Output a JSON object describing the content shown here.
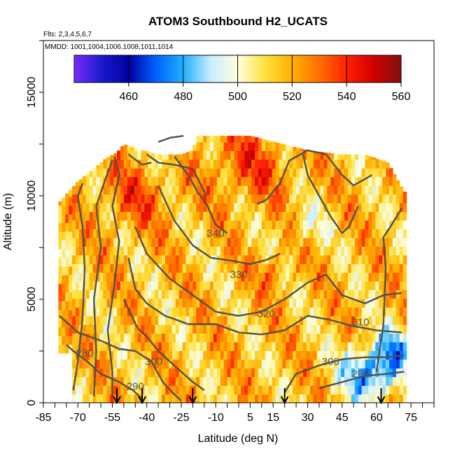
{
  "chart_data": {
    "type": "heatmap",
    "title": "ATOM3 Southbound H2_UCATS",
    "subtitle_flights": "Flts: 2,3,4,5,6,7",
    "subtitle_dates": "MMDD: 1001,1004,1006,1008,1011,1014",
    "xlabel": "Latitude (deg N)",
    "ylabel": "Altitude (m)",
    "xlim": [
      -85,
      85
    ],
    "ylim": [
      0,
      17500
    ],
    "x_tick_values": [
      -85,
      -70,
      -55,
      -40,
      -25,
      -10,
      5,
      15,
      30,
      45,
      60,
      75
    ],
    "x_tick_labels": [
      "-85",
      "-70",
      "-55",
      "-40",
      "-25",
      "-10",
      "5",
      "15",
      "30",
      "45",
      "60",
      "75"
    ],
    "y_tick_values": [
      0,
      5000,
      10000,
      15000
    ],
    "y_tick_labels": [
      "0",
      "5000",
      "10000",
      "15000"
    ],
    "colorbar": {
      "range": [
        440,
        560
      ],
      "tick_values": [
        460,
        480,
        500,
        520,
        540,
        560
      ],
      "tick_labels": [
        "460",
        "480",
        "500",
        "520",
        "540",
        "560"
      ],
      "colors": [
        "#7a2cff",
        "#1a1acc",
        "#0000a0",
        "#0060ff",
        "#20b0ff",
        "#c8ecff",
        "#ffffe0",
        "#ffe040",
        "#ffb000",
        "#ff7000",
        "#ff2000",
        "#d00000",
        "#801010"
      ]
    },
    "profile_latitudes_arrows": [
      -53,
      -42,
      -20,
      20,
      62
    ],
    "contours": [
      {
        "label": "280",
        "label_x": -67,
        "label_y": 2400
      },
      {
        "label": "290",
        "label_x": -45,
        "label_y": 800
      },
      {
        "label": "290",
        "label_x": 53,
        "label_y": 1400
      },
      {
        "label": "300",
        "label_x": -37,
        "label_y": 2000
      },
      {
        "label": "300",
        "label_x": 40,
        "label_y": 2000
      },
      {
        "label": "310",
        "label_x": 53,
        "label_y": 3900
      },
      {
        "label": "320",
        "label_x": 12,
        "label_y": 4300
      },
      {
        "label": "330",
        "label_x": 0,
        "label_y": 6200
      },
      {
        "label": "340",
        "label_x": -10,
        "label_y": 8200
      }
    ]
  }
}
